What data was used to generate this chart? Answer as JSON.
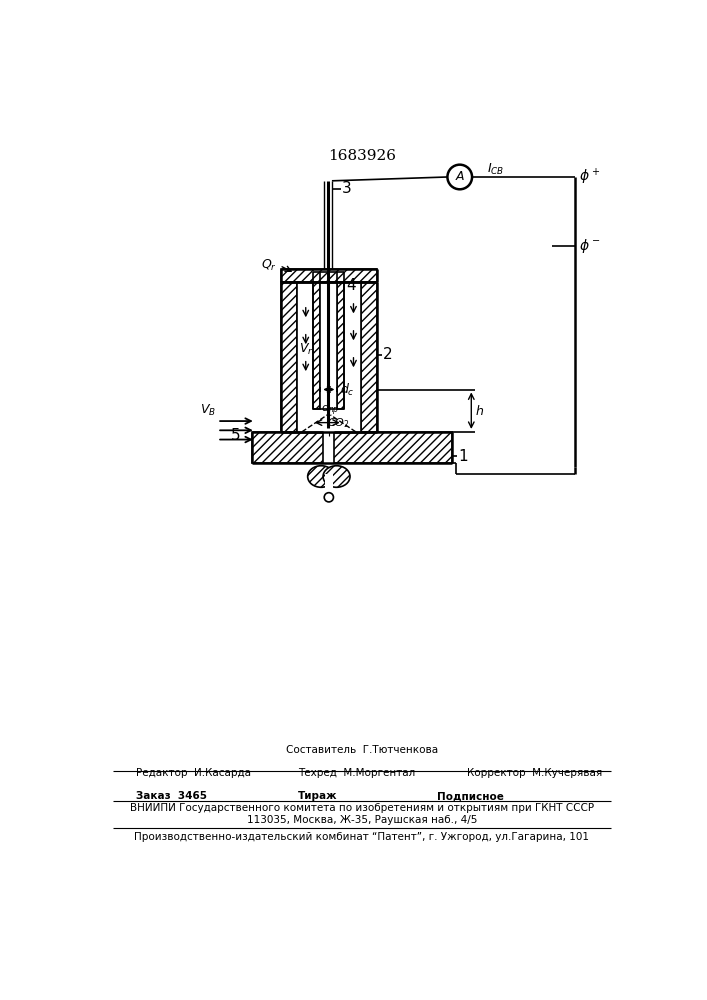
{
  "title": "1683926",
  "bg_color": "#ffffff",
  "fig_width": 7.07,
  "fig_height": 10.0,
  "footer": {
    "line1_left": "Редактор  И.Касарда",
    "line1_center_top": "Составитель  Г.Тютченкова",
    "line1_center": "Техред  М.Моргентал",
    "line1_right": "Корректор  М.Кучерявая",
    "line2_left": "Заказ  3465",
    "line2_center": "Тираж",
    "line2_right": "Подписное",
    "line3": "ВНИИПИ Государственного комитета по изобретениям и открытиям при ГКНТ СССР",
    "line4": "113035, Москва, Ж-35, Раушская наб., 4/5",
    "line5": "Производственно-издательский комбинат “Патент”, г. Ужгород, ул.Гагарина, 101"
  }
}
